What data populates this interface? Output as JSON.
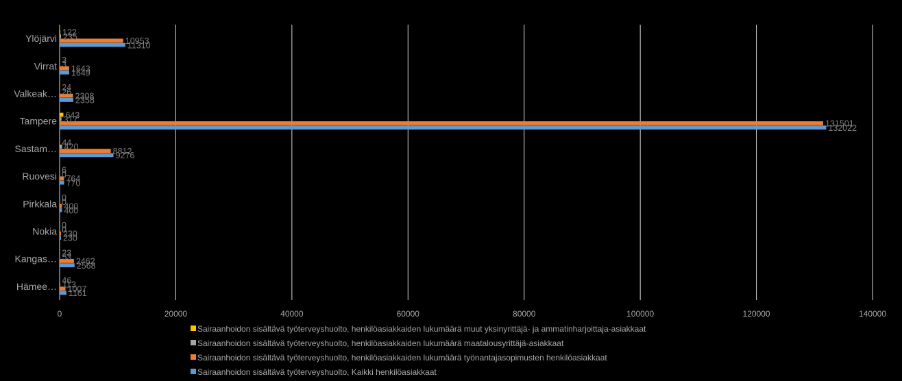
{
  "chart_data": {
    "type": "bar",
    "orientation": "horizontal",
    "title": "",
    "xlabel": "",
    "ylabel": "",
    "xlim": [
      0,
      140000
    ],
    "x_ticks": [
      0,
      20000,
      40000,
      60000,
      80000,
      100000,
      120000,
      140000
    ],
    "x_tick_labels": [
      "0",
      "20000",
      "40000",
      "60000",
      "80000",
      "100000",
      "120000",
      "140000"
    ],
    "grid": "vertical",
    "legend_position": "bottom",
    "categories": [
      "Ylöjärvi",
      "Virrat",
      "Valkeak…",
      "Tampere",
      "Sastam…",
      "Ruovesi",
      "Pirkkala",
      "Nokia",
      "Kangas…",
      "Hämee…"
    ],
    "series": [
      {
        "name": "Sairaanhoidon sisältävä työterveyshuolto, henkilöasiakkaiden lukumäärä muut yksinyrittäjä- ja ammatinharjoittaja-asiakkaat",
        "color": "#ffc000",
        "values": [
          122,
          3,
          24,
          643,
          44,
          6,
          0,
          0,
          23,
          46
        ],
        "labels": [
          "122",
          "3",
          "24",
          "643",
          "44",
          "6",
          "0",
          "0",
          "23",
          "46"
        ]
      },
      {
        "name": "Sairaanhoidon sisältävä työterveyshuolto, henkilöasiakkaiden lukumäärä maatalousyrittäjä-asiakkaat",
        "color": "#a5a5a5",
        "values": [
          235,
          3,
          26,
          317,
          420,
          0,
          0,
          0,
          53,
          113
        ],
        "labels": [
          "235",
          "3",
          "26",
          "317",
          "420",
          "0",
          "0",
          "0",
          "53",
          "113"
        ]
      },
      {
        "name": "Sairaanhoidon sisältävä työterveyshuolto, henkilöasiakkaiden lukumäärä työnantajasopimusten henkilöasiakkaat",
        "color": "#ed7d31",
        "values": [
          10953,
          1643,
          2308,
          131501,
          8812,
          764,
          400,
          230,
          2462,
          1007
        ],
        "labels": [
          "10953",
          "1643",
          "2308",
          "131501",
          "8812",
          "764",
          "400",
          "230",
          "2462",
          "1007"
        ]
      },
      {
        "name": "Sairaanhoidon sisältävä työterveyshuolto, Kaikki henkilöasiakkaat",
        "color": "#5b9bd5",
        "values": [
          11310,
          1649,
          2358,
          132022,
          9276,
          770,
          400,
          230,
          2568,
          1161
        ],
        "labels": [
          "11310",
          "1649",
          "2358",
          "132022",
          "9276",
          "770",
          "400",
          "230",
          "2568",
          "1161"
        ]
      }
    ]
  }
}
